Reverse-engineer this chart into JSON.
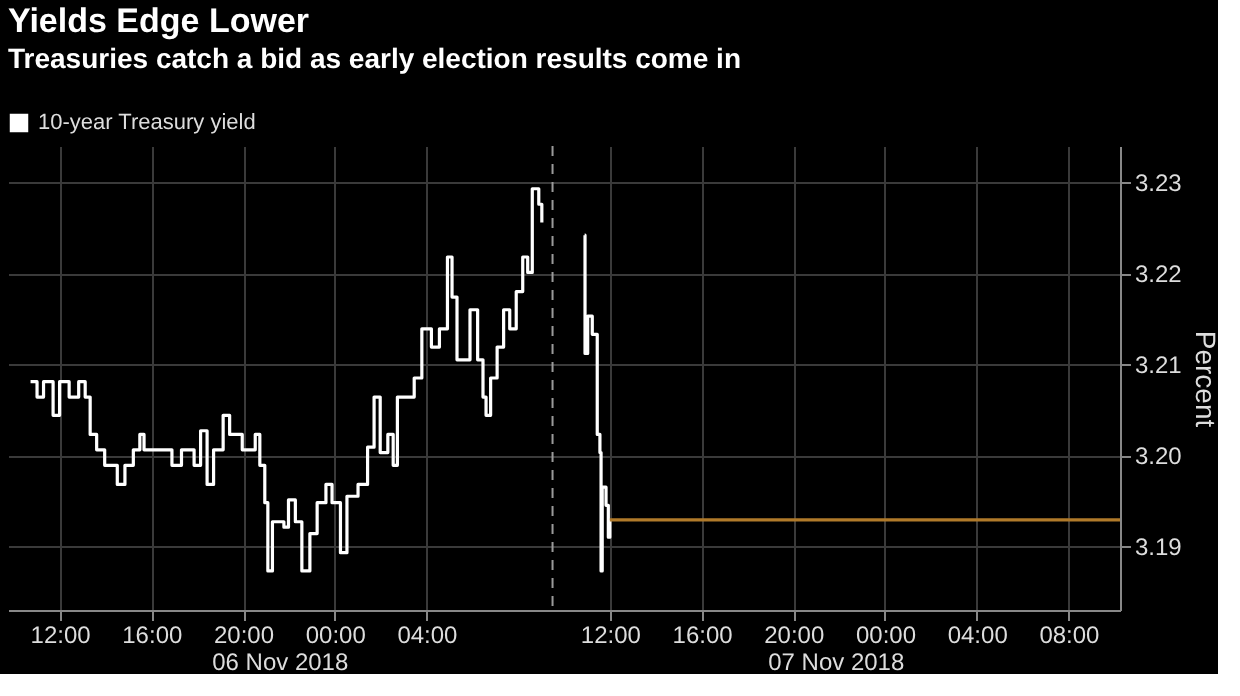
{
  "chart_data": {
    "type": "step",
    "title": "Yields Edge Lower",
    "subtitle": "Treasuries catch a bid as early election results come in",
    "ylabel": "Percent",
    "annotations": [
      "06 Nov 2018",
      "07 Nov 2018"
    ],
    "xlim": [
      "2018-11-06T09:45",
      "2018-11-08T10:15"
    ],
    "xticks": [
      {
        "value": "2018-11-06T12:00",
        "label": "12:00"
      },
      {
        "value": "2018-11-06T16:00",
        "label": "16:00"
      },
      {
        "value": "2018-11-06T20:00",
        "label": "20:00"
      },
      {
        "value": "2018-11-07T00:00",
        "label": "00:00"
      },
      {
        "value": "2018-11-07T04:00",
        "label": "04:00"
      },
      {
        "value": "2018-11-07T12:00",
        "label": "12:00"
      },
      {
        "value": "2018-11-07T16:00",
        "label": "16:00"
      },
      {
        "value": "2018-11-07T20:00",
        "label": "20:00"
      },
      {
        "value": "2018-11-08T00:00",
        "label": "00:00"
      },
      {
        "value": "2018-11-08T04:00",
        "label": "04:00"
      },
      {
        "value": "2018-11-08T08:00",
        "label": "08:00"
      }
    ],
    "ylim": [
      3.183,
      3.234
    ],
    "yticks": [
      3.19,
      {
        "value": 3.2,
        "label": "3.20"
      },
      3.21,
      3.22,
      3.23
    ],
    "grid": true,
    "legend": "top left",
    "ref_lines": [
      {
        "axis": "x",
        "value": "2018-11-07T09:30",
        "color": "#9a9a9a",
        "line_style": "dashed"
      }
    ],
    "series": [
      {
        "name": "10-year Treasury yield",
        "color": "#ffffff",
        "x": [
          "2018-11-06T10:44",
          "2018-11-06T11:01",
          "2018-11-06T11:18",
          "2018-11-06T11:43",
          "2018-11-06T12:00",
          "2018-11-06T12:25",
          "2018-11-06T12:50",
          "2018-11-06T13:07",
          "2018-11-06T13:20",
          "2018-11-06T13:37",
          "2018-11-06T13:58",
          "2018-11-06T14:31",
          "2018-11-06T14:51",
          "2018-11-06T15:13",
          "2018-11-06T15:30",
          "2018-11-06T15:41",
          "2018-11-06T16:37",
          "2018-11-06T16:54",
          "2018-11-06T17:19",
          "2018-11-06T17:52",
          "2018-11-06T18:09",
          "2018-11-06T18:26",
          "2018-11-06T18:43",
          "2018-11-06T19:08",
          "2018-11-06T19:25",
          "2018-11-06T19:58",
          "2018-11-06T20:32",
          "2018-11-06T20:44",
          "2018-11-06T20:57",
          "2018-11-06T21:05",
          "2018-11-06T21:17",
          "2018-11-06T21:47",
          "2018-11-06T21:59",
          "2018-11-06T22:17",
          "2018-11-06T22:34",
          "2018-11-06T22:55",
          "2018-11-06T23:14",
          "2018-11-06T23:37",
          "2018-11-06T23:53",
          "2018-11-07T00:15",
          "2018-11-07T00:32",
          "2018-11-07T01:01",
          "2018-11-07T01:26",
          "2018-11-07T01:43",
          "2018-11-07T01:59",
          "2018-11-07T02:19",
          "2018-11-07T02:33",
          "2018-11-07T02:44",
          "2018-11-07T03:10",
          "2018-11-07T03:28",
          "2018-11-07T03:48",
          "2018-11-07T04:13",
          "2018-11-07T04:34",
          "2018-11-07T04:55",
          "2018-11-07T05:07",
          "2018-11-07T05:20",
          "2018-11-07T05:54",
          "2018-11-07T06:14",
          "2018-11-07T06:28",
          "2018-11-07T06:36",
          "2018-11-07T06:48",
          "2018-11-07T07:05",
          "2018-11-07T07:22",
          "2018-11-07T07:38",
          "2018-11-07T07:55",
          "2018-11-07T08:12",
          "2018-11-07T08:25",
          "2018-11-07T08:37",
          "2018-11-07T08:54",
          "2018-11-07T09:02",
          "2018-11-07T09:30",
          "2018-11-07T10:54",
          "2018-11-07T10:55",
          "2018-11-07T11:02",
          "2018-11-07T11:14",
          "2018-11-07T11:27",
          "2018-11-07T11:34",
          "2018-11-07T11:37",
          "2018-11-07T11:40",
          "2018-11-07T11:50",
          "2018-11-07T11:56",
          "2018-11-07T12:00"
        ],
        "values": [
          3.2081,
          3.2064,
          3.2081,
          3.2044,
          3.2081,
          3.2064,
          3.2081,
          3.2064,
          3.2023,
          3.2006,
          3.1989,
          3.1968,
          3.1989,
          3.2006,
          3.2023,
          3.2006,
          3.2006,
          3.1989,
          3.2006,
          3.1989,
          3.2027,
          3.1968,
          3.2006,
          3.2044,
          3.2023,
          3.2006,
          3.2023,
          3.1989,
          3.1948,
          3.1873,
          3.1927,
          3.1921,
          3.1951,
          3.1927,
          3.1873,
          3.1914,
          3.1948,
          3.1968,
          3.1948,
          3.1893,
          3.1955,
          3.1968,
          3.2009,
          3.2064,
          3.2003,
          3.2023,
          3.1989,
          3.2064,
          3.2064,
          3.2085,
          3.2139,
          3.2119,
          3.2139,
          3.2218,
          3.2174,
          3.2105,
          3.216,
          3.2105,
          3.2064,
          3.2044,
          3.2085,
          3.2119,
          3.216,
          3.2139,
          3.218,
          3.2218,
          3.2201,
          3.2293,
          3.2276,
          3.2256,
          null,
          3.2242,
          3.2112,
          3.2153,
          3.2133,
          3.2023,
          3.2003,
          3.1873,
          3.1965,
          3.1945,
          3.191,
          3.1929
        ]
      },
      {
        "type": "line",
        "color": "#b07a2a",
        "x": [
          "2018-11-07T12:00",
          "2018-11-08T10:15"
        ],
        "values": [
          3.1929,
          3.1929
        ]
      }
    ]
  }
}
